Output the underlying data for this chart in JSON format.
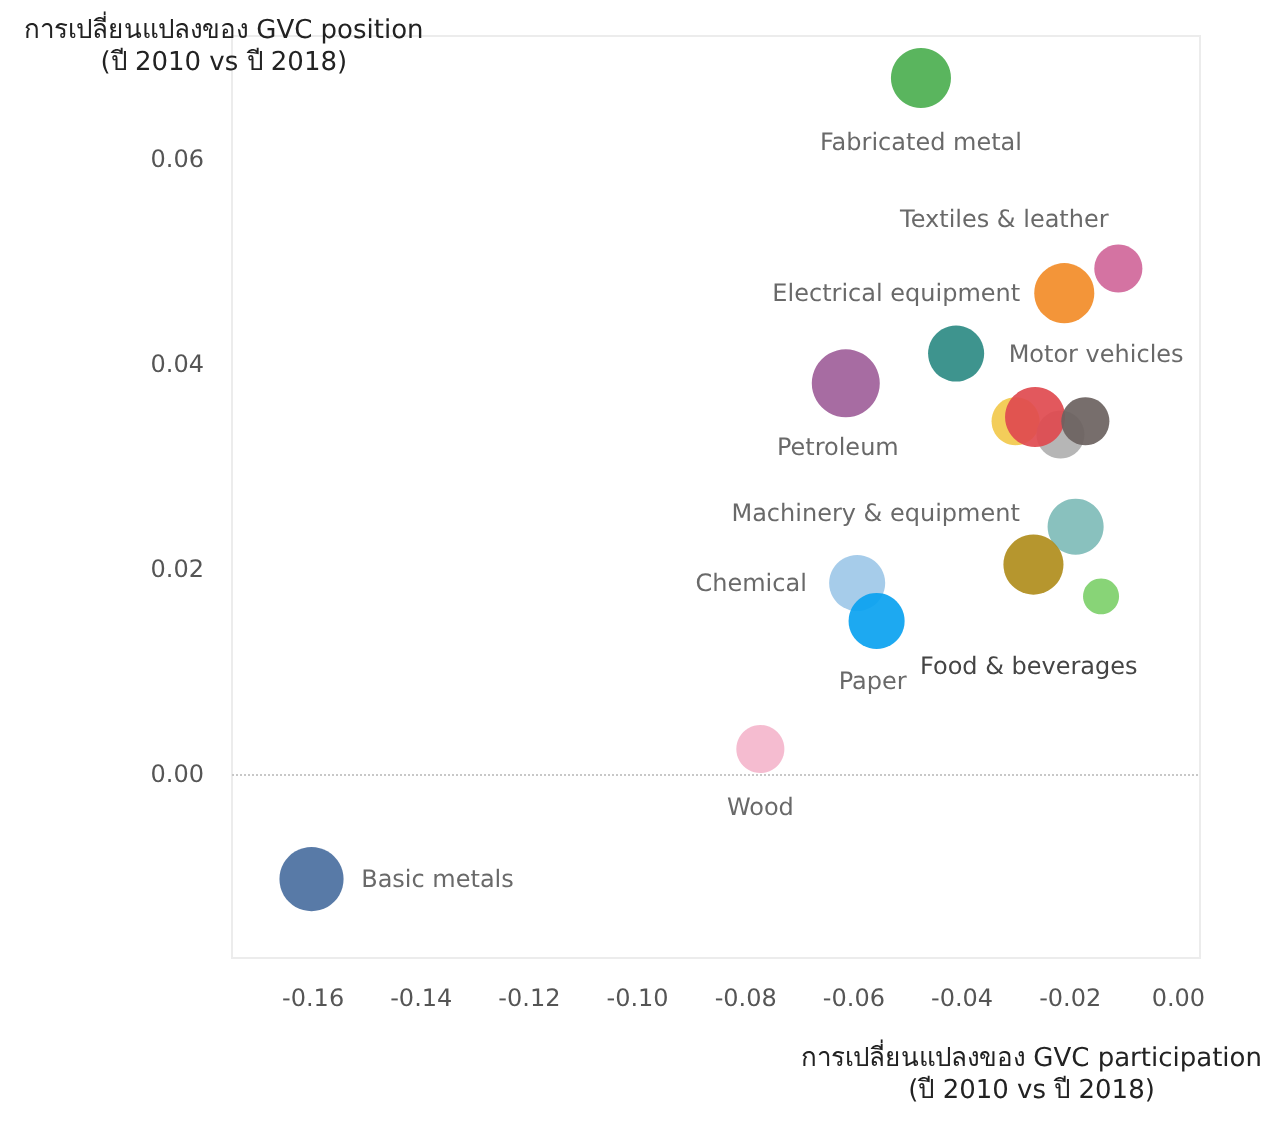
{
  "chart_data": {
    "type": "bubble",
    "xlabel": "การเปลี่ยนแปลงของ GVC participation\n(ปี 2010 vs ปี 2018)",
    "ylabel": "การเปลี่ยนแปลงของ GVC position\n(ปี 2010 vs ปี 2018)",
    "x": [
      -0.0476,
      -0.0111,
      -0.0211,
      -0.0411,
      -0.0615,
      -0.0301,
      -0.0218,
      -0.0265,
      -0.0172,
      -0.019,
      -0.0268,
      -0.0143,
      -0.0594,
      -0.0558,
      -0.0773,
      -0.1603
    ],
    "values": [
      0.0679,
      0.0493,
      0.0469,
      0.041,
      0.0381,
      0.0344,
      0.0331,
      0.0348,
      0.0344,
      0.0241,
      0.0204,
      0.0173,
      0.0186,
      0.0149,
      0.0024,
      -0.0103
    ],
    "sizes": [
      0.78,
      0.5,
      0.78,
      0.68,
      1,
      0.5,
      0.5,
      0.78,
      0.5,
      0.68,
      0.78,
      0.28,
      0.68,
      0.68,
      0.5,
      0.89
    ],
    "colors": [
      "#4caf50",
      "#d0679a",
      "#f28c28",
      "#2e8b84",
      "#a0609a",
      "#f2c94c",
      "#b0b0b0",
      "#e04a4f",
      "#6b625f",
      "#7fbcb8",
      "#b08d1c",
      "#7ed06b",
      "#9ec8e8",
      "#0aa2f0",
      "#f4b6cc",
      "#4a6fa0"
    ],
    "annotations": [
      {
        "text": "Fabricated metal",
        "x": -0.0476,
        "y": 0.0679
      },
      {
        "text": "Textiles & leather",
        "x": -0.0111,
        "y": 0.0493
      },
      {
        "text": "Electrical equipment",
        "x": -0.0211,
        "y": 0.0469
      },
      {
        "text": "Motor vehicles",
        "x": -0.0411,
        "y": 0.041
      },
      {
        "text": "Petroleum",
        "x": -0.0615,
        "y": 0.0381
      },
      {
        "text": "Machinery & equipment",
        "x": -0.019,
        "y": 0.0241
      },
      {
        "text": "Chemical",
        "x": -0.0594,
        "y": 0.0186
      },
      {
        "text": "Paper",
        "x": -0.0558,
        "y": 0.0149
      },
      "Food & beverages",
      {
        "text": "Wood",
        "x": -0.0773,
        "y": 0.0024
      },
      {
        "text": "Basic metals",
        "x": -0.1603,
        "y": -0.0103
      }
    ],
    "xlim": [
      -0.175,
      0.004
    ],
    "ylim": [
      -0.018,
      0.072
    ],
    "xticks": [
      -0.16,
      -0.14,
      -0.12,
      {
        "value": -0.1,
        "label": "-0.10"
      },
      -0.08,
      -0.06,
      -0.04,
      -0.02,
      {
        "value": 0,
        "label": "0.00"
      }
    ],
    "yticks": [
      {
        "value": 0,
        "label": "0.00"
      },
      0.02,
      0.04,
      0.06
    ],
    "ref_lines": [
      {
        "axis": "y",
        "value": 0,
        "color": "#c8c8c8",
        "line_style": "dotted"
      }
    ],
    "grid": false
  }
}
